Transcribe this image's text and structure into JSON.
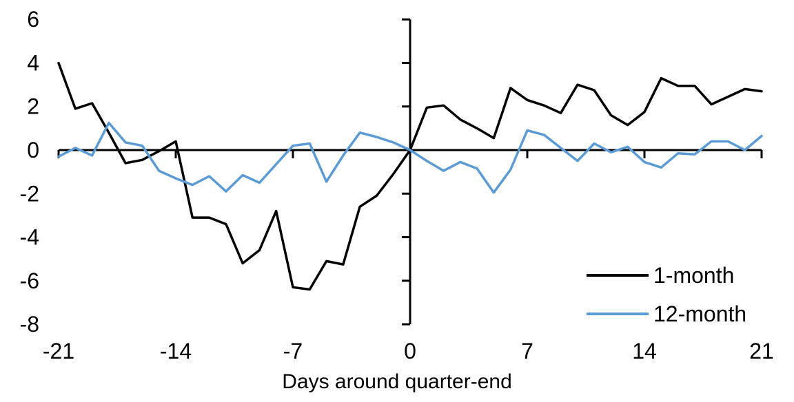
{
  "figure": {
    "xlabel": "Days around quarter-end",
    "background": "#ffffff",
    "axis_color": "#000000",
    "legend": {
      "position": "lower-right-inside",
      "entries": [
        {
          "label": "1-month",
          "color": "#000000"
        },
        {
          "label": "12-month",
          "color": "#5B9BD5"
        }
      ]
    }
  },
  "chart_data": {
    "type": "line",
    "title": "",
    "xlabel": "Days around quarter-end",
    "ylabel": "",
    "xlim": [
      -21,
      21
    ],
    "ylim": [
      -8,
      6
    ],
    "x_ticks": [
      -21,
      -14,
      -7,
      0,
      7,
      14,
      21
    ],
    "y_ticks": [
      6,
      4,
      2,
      0,
      -2,
      -4,
      -6,
      -8
    ],
    "grid": false,
    "legend_position": "lower right",
    "x": [
      -21,
      -20,
      -19,
      -18,
      -17,
      -16,
      -15,
      -14,
      -13,
      -12,
      -11,
      -10,
      -9,
      -8,
      -7,
      -6,
      -5,
      -4,
      -3,
      -2,
      -1,
      0,
      1,
      2,
      3,
      4,
      5,
      6,
      7,
      8,
      9,
      10,
      11,
      12,
      13,
      14,
      15,
      16,
      17,
      18,
      19,
      20,
      21
    ],
    "series": [
      {
        "name": "1-month",
        "color": "#000000",
        "values": [
          4.0,
          1.9,
          2.15,
          0.8,
          -0.6,
          -0.45,
          -0.05,
          0.4,
          -3.1,
          -3.1,
          -3.4,
          -5.2,
          -4.6,
          -2.8,
          -6.3,
          -6.4,
          -5.1,
          -5.25,
          -2.6,
          -2.1,
          -1.1,
          0.0,
          1.95,
          2.05,
          1.4,
          1.0,
          0.55,
          2.85,
          2.3,
          2.05,
          1.7,
          3.0,
          2.75,
          1.6,
          1.15,
          1.75,
          3.3,
          2.95,
          2.95,
          2.1,
          2.45,
          2.8,
          2.7
        ]
      },
      {
        "name": "12-month",
        "color": "#5B9BD5",
        "values": [
          -0.3,
          0.1,
          -0.25,
          1.25,
          0.35,
          0.2,
          -0.95,
          -1.3,
          -1.6,
          -1.2,
          -1.9,
          -1.15,
          -1.5,
          -0.65,
          0.2,
          0.3,
          -1.45,
          -0.25,
          0.8,
          0.6,
          0.35,
          0.0,
          -0.5,
          -0.95,
          -0.55,
          -0.85,
          -1.95,
          -0.9,
          0.9,
          0.7,
          0.1,
          -0.5,
          0.3,
          -0.1,
          0.15,
          -0.55,
          -0.8,
          -0.15,
          -0.2,
          0.4,
          0.4,
          0.0,
          0.65
        ]
      }
    ]
  }
}
